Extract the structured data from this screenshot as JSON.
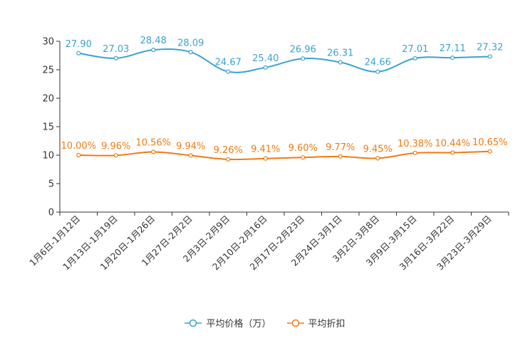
{
  "chart_data": {
    "type": "line",
    "categories": [
      "1月6日-1月12日",
      "1月13日-1月19日",
      "1月20日-1月26日",
      "1月27日-2月2日",
      "2月3日-2月9日",
      "2月10日-2月16日",
      "2月17日-2月23日",
      "2月24日-3月1日",
      "3月2日-3月8日",
      "3月9日-3月15日",
      "3月16日-3月22日",
      "3月23日-3月29日"
    ],
    "series": [
      {
        "name": "平均价格（万）",
        "color": "#3ba2d0",
        "values": [
          27.9,
          27.03,
          28.48,
          28.09,
          24.67,
          25.4,
          26.96,
          26.31,
          24.66,
          27.01,
          27.11,
          27.32
        ],
        "labels": [
          "27.90",
          "27.03",
          "28.48",
          "28.09",
          "24.67",
          "25.40",
          "26.96",
          "26.31",
          "24.66",
          "27.01",
          "27.11",
          "27.32"
        ]
      },
      {
        "name": "平均折扣",
        "color": "#f07a12",
        "values": [
          10.0,
          9.96,
          10.56,
          9.94,
          9.26,
          9.41,
          9.6,
          9.77,
          9.45,
          10.38,
          10.44,
          10.65
        ],
        "labels": [
          "10.00%",
          "9.96%",
          "10.56%",
          "9.94%",
          "9.26%",
          "9.41%",
          "9.60%",
          "9.77%",
          "9.45%",
          "10.38%",
          "10.44%",
          "10.65%"
        ]
      }
    ],
    "yticks": [
      "0",
      "5",
      "10",
      "15",
      "20",
      "25",
      "30"
    ],
    "ylim": [
      0,
      30
    ],
    "grid": false,
    "legend": "bottom-center",
    "title": "",
    "xlabel": "",
    "ylabel": ""
  }
}
